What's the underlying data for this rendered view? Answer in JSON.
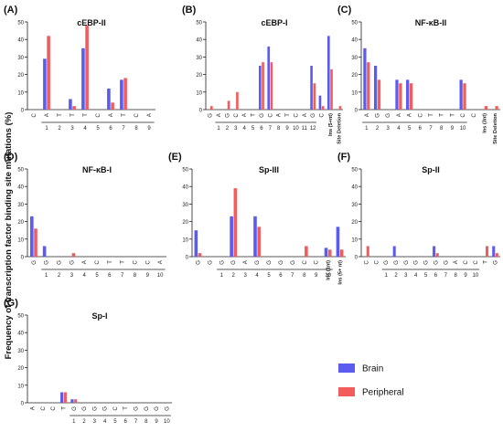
{
  "figure": {
    "ylabel": "Frequency of transcription factor binding site mutations (%)",
    "legend": [
      {
        "name": "Brain",
        "color": "#5b5bf0"
      },
      {
        "name": "Peripheral",
        "color": "#f25c5c"
      }
    ],
    "legend_placement": "bottom-right"
  },
  "chart_data": [
    {
      "type": "bar",
      "letter": "(A)",
      "title": "cEBP-II",
      "ylim": [
        0,
        50
      ],
      "yticks": [
        0,
        10,
        20,
        30,
        40,
        50
      ],
      "categories": [
        "C",
        "A",
        "T",
        "T",
        "T",
        "C",
        "A",
        "T",
        "C",
        "A"
      ],
      "positions": [
        "",
        "1",
        "2",
        "3",
        "4",
        "5",
        "6",
        "7",
        "8",
        "9"
      ],
      "series": [
        {
          "name": "Brain",
          "values": [
            0,
            29,
            0,
            6,
            35,
            0,
            12,
            17,
            0,
            0
          ]
        },
        {
          "name": "Peripheral",
          "values": [
            0,
            42,
            0,
            2,
            48,
            0,
            4,
            18,
            0,
            0
          ]
        }
      ]
    },
    {
      "type": "bar",
      "letter": "(B)",
      "title": "cEBP-I",
      "ylim": [
        0,
        50
      ],
      "yticks": [
        0,
        10,
        20,
        30,
        40,
        50
      ],
      "categories": [
        "G",
        "A",
        "G",
        "C",
        "A",
        "T",
        "G",
        "C",
        "A",
        "T",
        "C",
        "A",
        "G",
        "C",
        "Ins (5+nt)",
        "Site Deletion"
      ],
      "positions": [
        "",
        "1",
        "2",
        "3",
        "4",
        "5",
        "6",
        "7",
        "8",
        "9",
        "10",
        "11",
        "12",
        "",
        "",
        ""
      ],
      "series": [
        {
          "name": "Brain",
          "values": [
            0,
            0,
            0,
            0,
            0,
            0,
            25,
            36,
            0,
            0,
            0,
            0,
            25,
            8,
            42,
            0
          ]
        },
        {
          "name": "Peripheral",
          "values": [
            2,
            0,
            5,
            10,
            0,
            0,
            27,
            27,
            0,
            0,
            0,
            0,
            15,
            2,
            23,
            2
          ]
        }
      ]
    },
    {
      "type": "bar",
      "letter": "(C)",
      "title": "NF-κB-II",
      "ylim": [
        0,
        50
      ],
      "yticks": [
        0,
        10,
        20,
        30,
        40,
        50
      ],
      "categories": [
        "A",
        "G",
        "G",
        "A",
        "A",
        "C",
        "T",
        "T",
        "T",
        "C",
        "C",
        "Ins (3nt)",
        "Site Deletion"
      ],
      "positions": [
        "1",
        "2",
        "3",
        "4",
        "5",
        "6",
        "7",
        "8",
        "9",
        "10",
        "",
        "",
        ""
      ],
      "series": [
        {
          "name": "Brain",
          "values": [
            35,
            25,
            0,
            17,
            17,
            0,
            0,
            0,
            0,
            17,
            0,
            0,
            0
          ]
        },
        {
          "name": "Peripheral",
          "values": [
            27,
            17,
            0,
            15,
            15,
            0,
            0,
            0,
            0,
            15,
            0,
            2,
            2
          ]
        }
      ]
    },
    {
      "type": "bar",
      "letter": "(D)",
      "title": "NF-κB-I",
      "ylim": [
        0,
        50
      ],
      "yticks": [
        0,
        10,
        20,
        30,
        40,
        50
      ],
      "categories": [
        "G",
        "G",
        "G",
        "G",
        "A",
        "C",
        "T",
        "T",
        "C",
        "C",
        "A"
      ],
      "positions": [
        "",
        "1",
        "2",
        "3",
        "4",
        "5",
        "6",
        "7",
        "8",
        "9",
        "10"
      ],
      "series": [
        {
          "name": "Brain",
          "values": [
            23,
            6,
            0,
            0,
            0,
            0,
            0,
            0,
            0,
            0,
            0
          ]
        },
        {
          "name": "Peripheral",
          "values": [
            16,
            0,
            0,
            2,
            0,
            0,
            0,
            0,
            0,
            0,
            0
          ]
        }
      ]
    },
    {
      "type": "bar",
      "letter": "(E)",
      "title": "Sp-III",
      "ylim": [
        0,
        50
      ],
      "yticks": [
        0,
        10,
        20,
        30,
        40,
        50
      ],
      "categories": [
        "G",
        "G",
        "G",
        "G",
        "A",
        "G",
        "G",
        "G",
        "G",
        "C",
        "C",
        "Ins (1nt)",
        "Ins (5+ nt)"
      ],
      "positions": [
        "",
        "",
        "1",
        "2",
        "3",
        "4",
        "5",
        "6",
        "7",
        "8",
        "9",
        "10",
        ""
      ],
      "series": [
        {
          "name": "Brain",
          "values": [
            15,
            0,
            0,
            23,
            0,
            23,
            0,
            0,
            0,
            0,
            0,
            5,
            17
          ]
        },
        {
          "name": "Peripheral",
          "values": [
            2,
            0,
            0,
            39,
            0,
            17,
            0,
            0,
            0,
            6,
            0,
            4,
            4
          ]
        }
      ]
    },
    {
      "type": "bar",
      "letter": "(F)",
      "title": "Sp-II",
      "ylim": [
        0,
        50
      ],
      "yticks": [
        0,
        10,
        20,
        30,
        40,
        50
      ],
      "categories": [
        "C",
        "C",
        "G",
        "G",
        "G",
        "G",
        "G",
        "G",
        "G",
        "A",
        "C",
        "C",
        "T",
        "G"
      ],
      "positions": [
        "",
        "",
        "1",
        "2",
        "3",
        "4",
        "5",
        "6",
        "7",
        "8",
        "9",
        "10",
        "",
        ""
      ],
      "series": [
        {
          "name": "Brain",
          "values": [
            0,
            0,
            0,
            6,
            0,
            0,
            0,
            6,
            0,
            0,
            0,
            0,
            0,
            6
          ]
        },
        {
          "name": "Peripheral",
          "values": [
            6,
            0,
            0,
            0,
            0,
            0,
            0,
            2,
            0,
            0,
            0,
            0,
            6,
            2
          ]
        }
      ]
    },
    {
      "type": "bar",
      "letter": "(G)",
      "title": "Sp-I",
      "ylim": [
        0,
        50
      ],
      "yticks": [
        0,
        10,
        20,
        30,
        40,
        50
      ],
      "categories": [
        "A",
        "C",
        "C",
        "T",
        "G",
        "G",
        "G",
        "G",
        "C",
        "T",
        "G",
        "G",
        "G",
        "G"
      ],
      "positions": [
        "",
        "",
        "",
        "",
        "1",
        "2",
        "3",
        "4",
        "5",
        "6",
        "7",
        "8",
        "9",
        "10"
      ],
      "series": [
        {
          "name": "Brain",
          "values": [
            0,
            0,
            0,
            6,
            2,
            0,
            0,
            0,
            0,
            0,
            0,
            0,
            0,
            0
          ]
        },
        {
          "name": "Peripheral",
          "values": [
            0,
            0,
            0,
            6,
            2,
            0,
            0,
            0,
            0,
            0,
            0,
            0,
            0,
            0
          ]
        }
      ]
    }
  ]
}
